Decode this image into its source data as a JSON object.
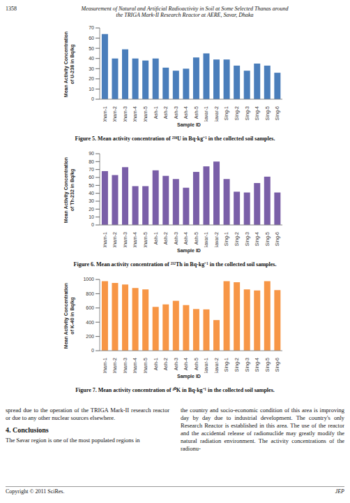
{
  "header": {
    "page": "1358",
    "title": [
      "Measurement of Natural and Artificial Radioactivity in Soil at Some Selected Thanas around",
      "the TRIGA Mark-II Research Reactor at AERE, Savar, Dhaka"
    ]
  },
  "chart_data": [
    {
      "type": "bar",
      "title": "Figure 5. Mean activity concentration of ²³⁸U in Bq·kg⁻¹ in the collected soil samples.",
      "ylabel": [
        "Mean Activity Concentration",
        "of U-238 in Bq/kg"
      ],
      "xlabel": "Sample ID",
      "categories": [
        "Dham-1",
        "Dham-2",
        "Dham-3",
        "Dham-4",
        "Dham-5",
        "Ash-1",
        "Ash-2",
        "Ash-3",
        "Ash-4",
        "Ash-5",
        "Savar-1",
        "Savar-2",
        "Sing-1",
        "Sing-2",
        "Sing-3",
        "Sing-4",
        "Sing-5",
        "Sing-6"
      ],
      "values": [
        64,
        40,
        49,
        40,
        38,
        40,
        31,
        28,
        30,
        41,
        45,
        39,
        39,
        33,
        28,
        35,
        33,
        26
      ],
      "color": "#4a7ebb",
      "ylim": [
        0,
        70
      ],
      "yticks": [
        0,
        10,
        20,
        30,
        40,
        50,
        60,
        70
      ],
      "grid": false
    },
    {
      "type": "bar",
      "title": "Figure 6. Mean activity concentration of ²³²Th in Bq·kg⁻¹ in the collected soil samples.",
      "ylabel": [
        "Mean Activity Concentration",
        "of Th-232 in Bq/kg"
      ],
      "xlabel": "Sample ID",
      "categories": [
        "Dham-1",
        "Dham-2",
        "Dham-3",
        "Dham-4",
        "Dham-5",
        "Ash-1",
        "Ash-2",
        "Ash-3",
        "Ash-4",
        "Ash-5",
        "Savar-1",
        "Savar-2",
        "Sing-1",
        "Sing-2",
        "Sing-3",
        "Sing-4",
        "Sing-5",
        "Sing-6"
      ],
      "values": [
        68,
        63,
        73,
        49,
        49,
        69,
        62,
        58,
        47,
        67,
        74,
        80,
        58,
        42,
        41,
        53,
        61,
        41
      ],
      "color": "#7a5fa8",
      "ylim": [
        0,
        90
      ],
      "yticks": [
        0,
        10,
        20,
        30,
        40,
        50,
        60,
        70,
        80,
        90
      ],
      "grid": false
    },
    {
      "type": "bar",
      "title": "Figure 7. Mean activity concentration of ⁴⁰K in Bq·kg⁻¹ in the collected soil samples.",
      "ylabel": [
        "Mean Activity Concentration",
        "of K-40 in Bq/kg"
      ],
      "xlabel": "Sample ID",
      "categories": [
        "Dham-1",
        "Dham-2",
        "Dham-3",
        "Dham-4",
        "Dham-5",
        "Ash-1",
        "Ash-2",
        "Ash-3",
        "Ash-4",
        "Ash-5",
        "Savar-1",
        "Savar-2",
        "Sing-1",
        "Sing-2",
        "Sing-3",
        "Sing-4",
        "Sing-5",
        "Sing-6"
      ],
      "values": [
        975,
        950,
        930,
        880,
        860,
        615,
        650,
        700,
        640,
        585,
        580,
        430,
        975,
        960,
        860,
        845,
        975,
        850
      ],
      "color": "#f79646",
      "ylim": [
        0,
        1000
      ],
      "yticks": [
        0,
        200,
        400,
        600,
        800,
        1000
      ],
      "grid": false
    }
  ],
  "text": {
    "left_top": "spread due to the operation of the TRIGA Mark-II research reactor or due to any other nuclear sources elsewhere.",
    "heading": "4. Conclusions",
    "left_bottom": "The Savar region is one of the most populated regions in",
    "right": "the country and socio-economic condition of this area is improving day by day due to industrial development. The country's only Research Reactor is established in this area. The use of the reactor and the accidental release of radionuclide may greatly modify the natural radiation environment. The activity concentrations of the radionu-"
  },
  "footer": {
    "left": "Copyright © 2011 SciRes.",
    "right": "JEP"
  }
}
